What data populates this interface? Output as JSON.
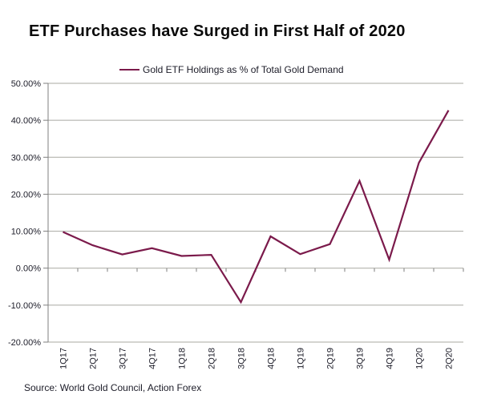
{
  "title": "ETF Purchases have Surged in First Half of 2020",
  "legend": {
    "label": "Gold ETF Holdings as % of Total Gold Demand",
    "swatch_color": "#7b1a4b"
  },
  "source": "Source: World Gold Council, Action Forex",
  "colors": {
    "series_line": "#7b1a4b",
    "gridline": "#a9a9a2",
    "axis": "#7f7f7f",
    "tick_label": "#1c1c28",
    "background": "#ffffff"
  },
  "chart_data": {
    "type": "line",
    "title": "ETF Purchases have Surged in First Half of 2020",
    "xlabel": "",
    "ylabel": "",
    "categories": [
      "1Q17",
      "2Q17",
      "3Q17",
      "4Q17",
      "1Q18",
      "2Q18",
      "3Q18",
      "4Q18",
      "1Q19",
      "2Q19",
      "3Q19",
      "4Q19",
      "1Q20",
      "2Q20"
    ],
    "series": [
      {
        "name": "Gold ETF Holdings as % of Total Gold Demand",
        "color": "#7b1a4b",
        "values": [
          9.8,
          6.2,
          3.7,
          5.4,
          3.3,
          3.6,
          -9.2,
          8.6,
          3.8,
          6.5,
          23.6,
          2.3,
          28.5,
          42.7
        ]
      }
    ],
    "ylim": [
      -20,
      50
    ],
    "ytick_values": [
      50,
      40,
      30,
      20,
      10,
      0,
      -10,
      -20
    ],
    "ytick_labels": [
      "50.00%",
      "40.00%",
      "30.00%",
      "20.00%",
      "10.00%",
      "0.00%",
      "-10.00%",
      "-20.00%"
    ],
    "grid": true,
    "legend_position": "top-center",
    "x_tick_label_rotation": -90
  }
}
